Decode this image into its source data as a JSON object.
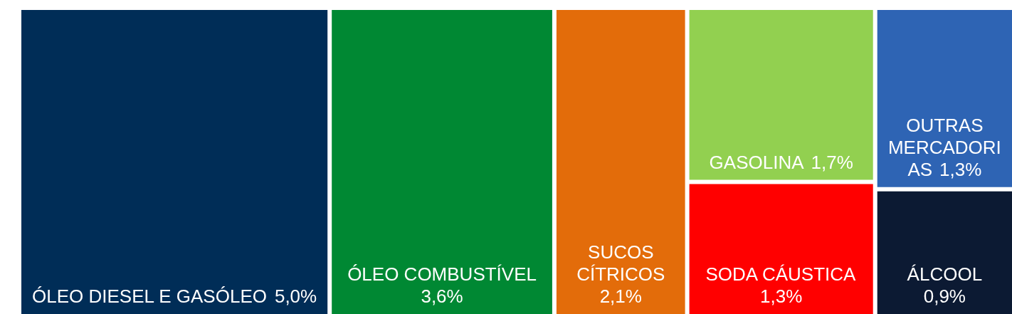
{
  "chart_data": {
    "type": "other",
    "categories": [
      "ÓLEO DIESEL E GASÓLEO",
      "ÓLEO COMBUSTÍVEL",
      "SUCOS CÍTRICOS",
      "GASOLINA",
      "SODA CÁUSTICA",
      "OUTRAS MERCADORIAS",
      "ÁLCOOL"
    ],
    "values": [
      5.0,
      3.6,
      2.1,
      1.7,
      1.3,
      1.3,
      0.9
    ],
    "value_labels": [
      "5,0%",
      "3,6%",
      "2,1%",
      "1,7%",
      "1,3%",
      "1,3%",
      "0,9%"
    ],
    "colors": [
      "#002d57",
      "#008833",
      "#e36c0a",
      "#92d050",
      "#ff0000",
      "#2e64b4",
      "#0c1a33"
    ]
  }
}
